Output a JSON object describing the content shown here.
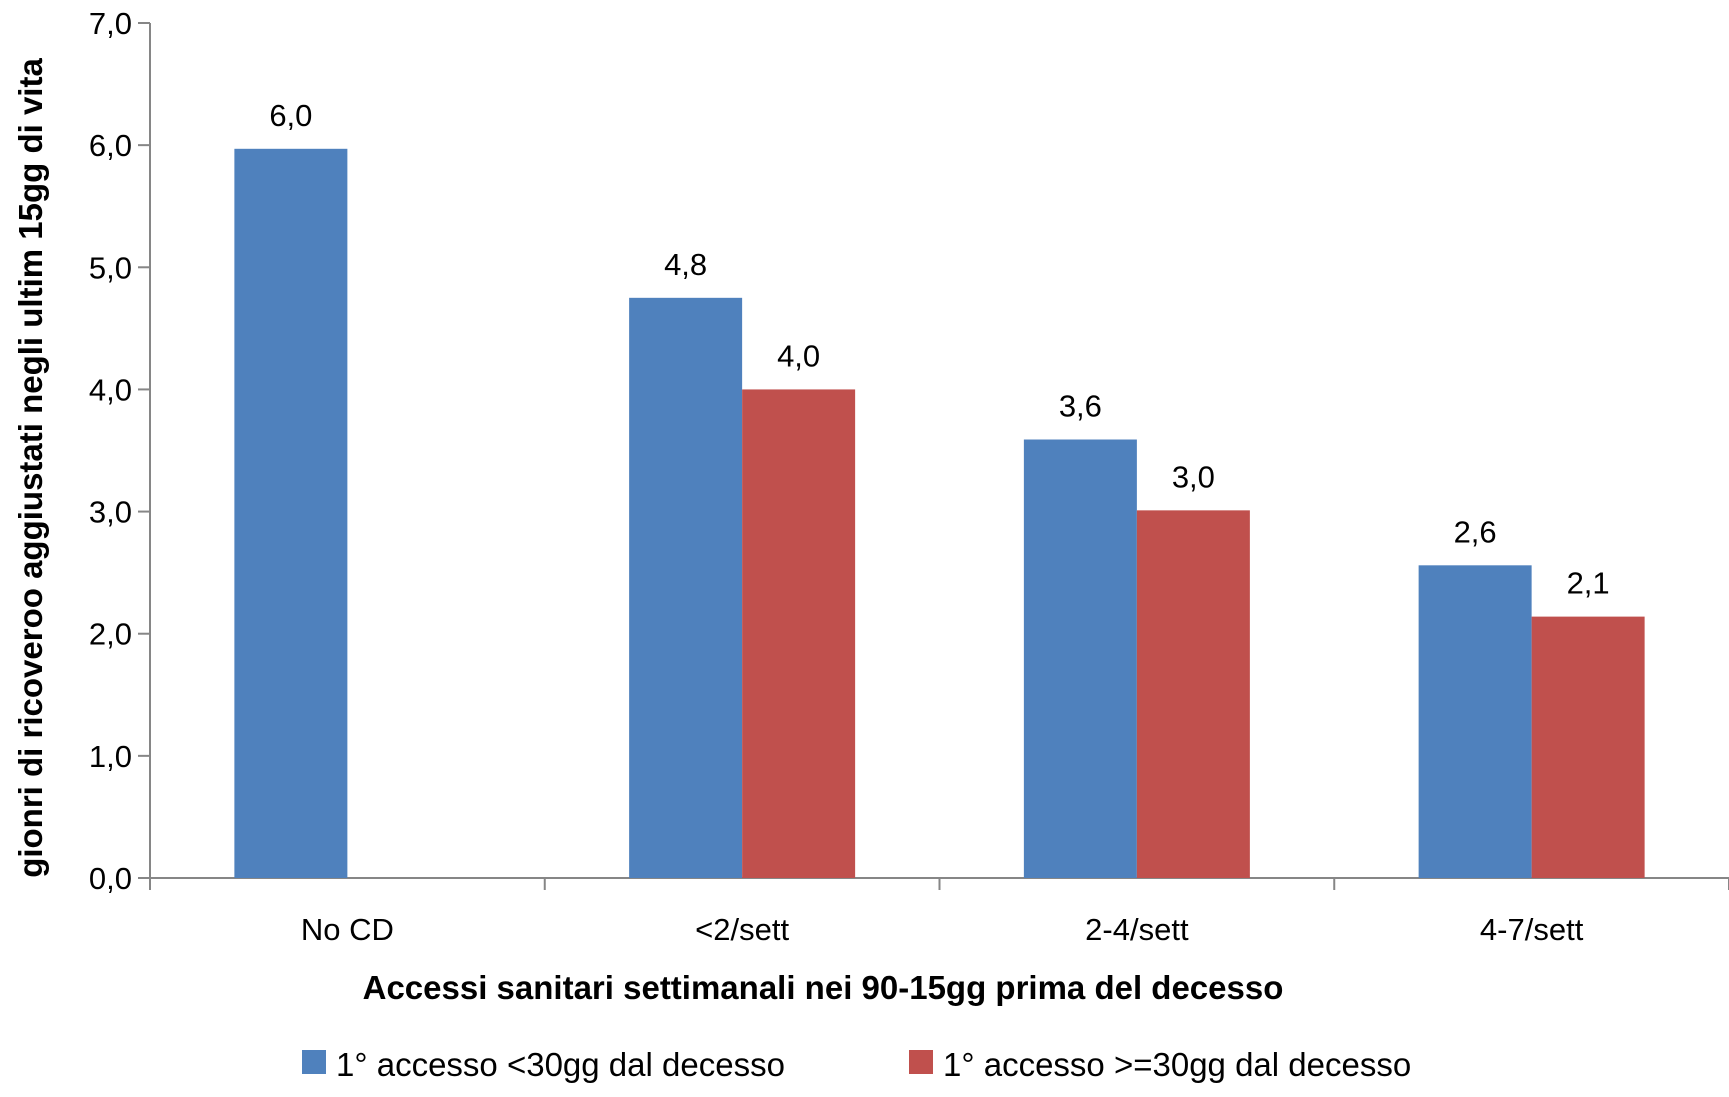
{
  "chart_data": {
    "type": "bar",
    "title": "",
    "xlabel": "Accessi sanitari settimanali nei 90-15gg prima del decesso",
    "ylabel": "gionri di ricoveroo aggiustati negli ultim 15gg di vita",
    "ylim": [
      0,
      7
    ],
    "ytick_step": 1,
    "yticks": [
      "0,0",
      "1,0",
      "2,0",
      "3,0",
      "4,0",
      "5,0",
      "6,0",
      "7,0"
    ],
    "categories": [
      "No CD",
      "<2/sett",
      "2-4/sett",
      "4-7/sett"
    ],
    "series": [
      {
        "name": "1° accesso <30gg dal decesso",
        "color": "#4f81bd",
        "values": [
          5.97,
          4.75,
          3.59,
          2.56
        ],
        "labels": [
          "6,0",
          "4,8",
          "3,6",
          "2,6"
        ]
      },
      {
        "name": "1° accesso >=30gg dal decesso",
        "color": "#c0504d",
        "values": [
          null,
          4.0,
          3.01,
          2.14
        ],
        "labels": [
          null,
          "4,0",
          "3,0",
          "2,1"
        ]
      }
    ],
    "grid": false,
    "legend_position": "bottom",
    "data_labels": true
  }
}
